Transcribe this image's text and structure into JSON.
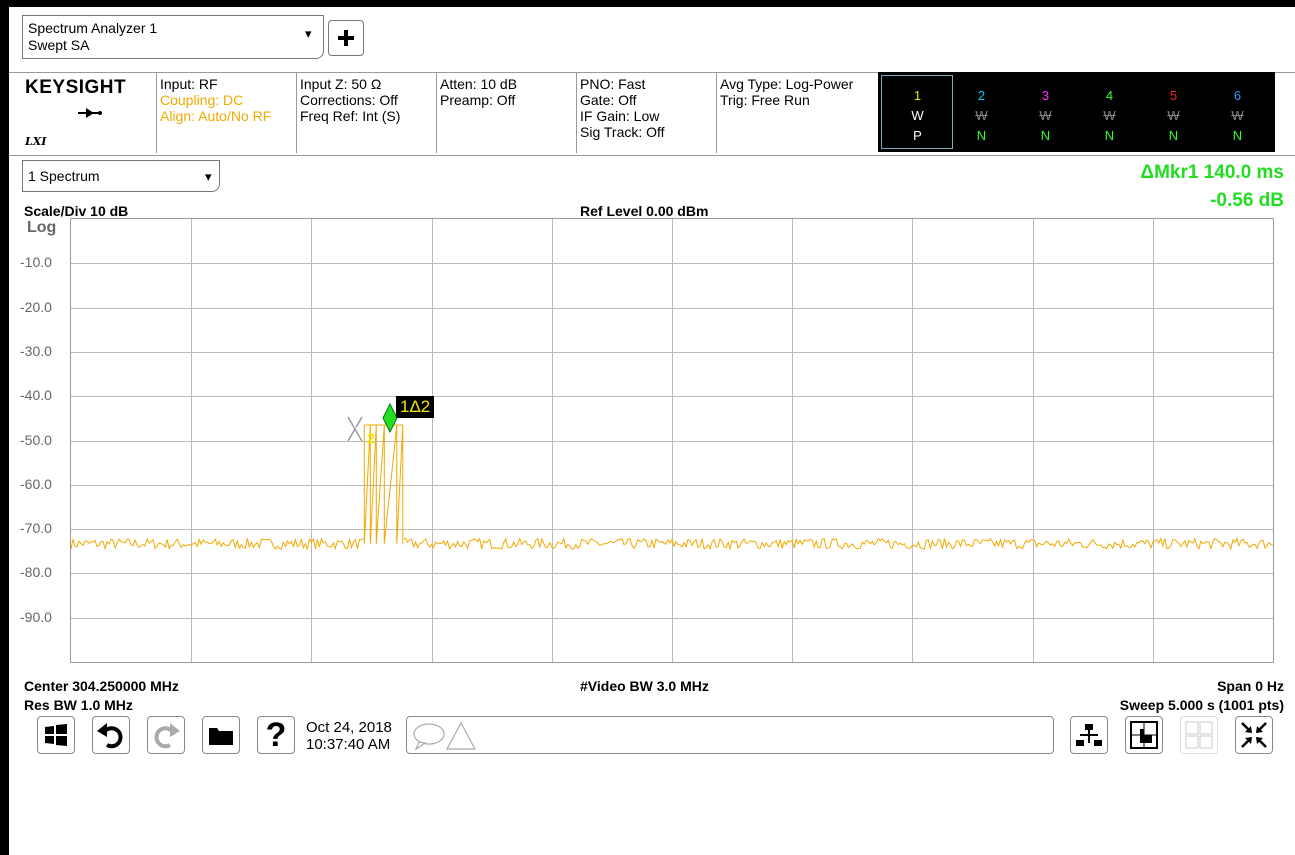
{
  "header": {
    "mode_line1": "Spectrum Analyzer 1",
    "mode_line2": "Swept SA",
    "add_icon": "plus-icon",
    "dropdown_arrow": "▾"
  },
  "brand": {
    "logo": "KEYSIGHT",
    "lxi": "LXI",
    "input_icon": "input-arrow-icon"
  },
  "settings": {
    "input": "Input: RF",
    "coupling": "Coupling: DC",
    "align": "Align: Auto/No RF",
    "input_z": "Input Z: 50 Ω",
    "corrections": "Corrections: Off",
    "freq_ref": "Freq Ref: Int (S)",
    "atten": "Atten: 10 dB",
    "preamp": "Preamp: Off",
    "pno": "PNO: Fast",
    "gate": "Gate: Off",
    "if_gain": "IF Gain: Low",
    "sig_track": "Sig Track: Off",
    "avg_type": "Avg Type: Log-Power",
    "trig": "Trig: Free Run"
  },
  "traces": [
    {
      "num": "1",
      "type": "W",
      "det": "P",
      "color": "#f2e600"
    },
    {
      "num": "2",
      "type": "W",
      "det": "N",
      "color": "#00c8ff"
    },
    {
      "num": "3",
      "type": "W",
      "det": "N",
      "color": "#ff33ff"
    },
    {
      "num": "4",
      "type": "W",
      "det": "N",
      "color": "#33ff33"
    },
    {
      "num": "5",
      "type": "W",
      "det": "N",
      "color": "#ff2222"
    },
    {
      "num": "6",
      "type": "W",
      "det": "N",
      "color": "#3399ff"
    }
  ],
  "window": {
    "select_label": "1 Spectrum"
  },
  "marker": {
    "line1": "ΔMkr1  140.0 ms",
    "line2": "-0.56 dB",
    "tag": "1Δ2",
    "ref_tag": "2"
  },
  "graph_header": {
    "scale": "Scale/Div 10 dB",
    "ref": "Ref Level 0.00 dBm",
    "log": "Log"
  },
  "y_labels": [
    "-10.0",
    "-20.0",
    "-30.0",
    "-40.0",
    "-50.0",
    "-60.0",
    "-70.0",
    "-80.0",
    "-90.0"
  ],
  "footer": {
    "center": "Center 304.250000 MHz",
    "video_bw": "#Video BW 3.0 MHz",
    "span": "Span 0 Hz",
    "res_bw": "Res BW 1.0 MHz",
    "sweep": "Sweep 5.000 s (1001 pts)"
  },
  "toolbar": {
    "date": "Oct 24, 2018",
    "time": "10:37:40 AM",
    "help": "?"
  },
  "chart_data": {
    "type": "line",
    "ylabel": "",
    "xlabel": "",
    "ylim": [
      -100,
      0
    ],
    "y_unit": "dBm",
    "x_span_s": 5.0,
    "points": 1001,
    "noise_floor_dbm": -73.3,
    "pulses": [
      {
        "start_s": 1.22,
        "end_s": 1.38,
        "level_dbm": -46.5
      }
    ],
    "color": "#f2a900"
  }
}
